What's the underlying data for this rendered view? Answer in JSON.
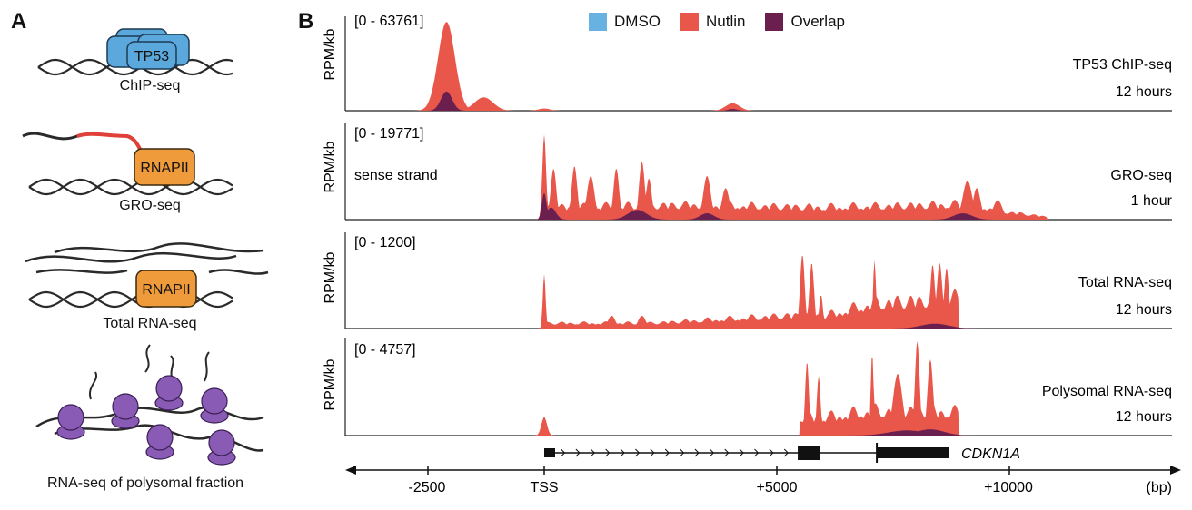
{
  "panel_a": {
    "label": "A",
    "chip_protein": "TP53",
    "chip_caption": "ChIP-seq",
    "gro_protein": "RNAPII",
    "gro_caption": "GRO-seq",
    "total_protein": "RNAPII",
    "total_caption": "Total RNA-seq",
    "poly_caption": "RNA-seq of polysomal fraction",
    "colors": {
      "tp53": "#5ba8dc",
      "rnapii": "#ef9a3b",
      "ribosome": "#8a5bb5",
      "dna": "#2a2a2a",
      "nascent": "#e0403a"
    }
  },
  "panel_b": {
    "label": "B",
    "legend": [
      {
        "name": "DMSO",
        "color": "#67b2e0"
      },
      {
        "name": "Nutlin",
        "color": "#e8574a"
      },
      {
        "name": "Overlap",
        "color": "#6b1f4f"
      }
    ],
    "gene": "CDKN1A",
    "x_ticks": [
      "-2500",
      "TSS",
      "+5000",
      "+10000"
    ],
    "x_unit": "(bp)",
    "tracks": [
      {
        "range": "[0 - 63761]",
        "name": "TP53 ChIP-seq",
        "time": "12 hours",
        "note": "",
        "ylabel": "RPM/kb"
      },
      {
        "range": "[0 - 19771]",
        "name": "GRO-seq",
        "time": "1 hour",
        "note": "sense strand",
        "ylabel": "RPM/kb"
      },
      {
        "range": "[0 - 1200]",
        "name": "Total RNA-seq",
        "time": "12 hours",
        "note": "",
        "ylabel": "RPM/kb"
      },
      {
        "range": "[0 - 4757]",
        "name": "Polysomal RNA-seq",
        "time": "12 hours",
        "note": "",
        "ylabel": "RPM/kb"
      }
    ]
  },
  "chart_data": {
    "type": "area",
    "x_unit": "bp",
    "x_ticks": [
      -2500,
      0,
      5000,
      10000
    ],
    "series_colors": {
      "DMSO": "#67b2e0",
      "Nutlin": "#e8574a",
      "Overlap": "#6b1f4f"
    },
    "tracks": [
      {
        "name": "TP53 ChIP-seq",
        "ymax": 63761,
        "nutlin_peaks": [
          [
            -2100,
            60000,
            180
          ],
          [
            -1300,
            9000,
            200
          ],
          [
            4050,
            5000,
            150
          ],
          [
            0,
            1500,
            120
          ]
        ],
        "overlap_peaks": [
          [
            -2100,
            13000,
            120
          ],
          [
            4050,
            1200,
            100
          ]
        ]
      },
      {
        "name": "GRO-seq",
        "ymax": 19771,
        "nutlin_peaks": [
          [
            0,
            17500,
            40
          ],
          [
            200,
            10500,
            60
          ],
          [
            650,
            11000,
            60
          ],
          [
            1000,
            9000,
            80
          ],
          [
            1550,
            10500,
            60
          ],
          [
            2100,
            12000,
            60
          ],
          [
            2250,
            8500,
            60
          ],
          [
            3500,
            9000,
            80
          ],
          [
            3900,
            6500,
            80
          ],
          [
            9100,
            8000,
            100
          ],
          [
            9300,
            6500,
            80
          ],
          [
            9750,
            4000,
            100
          ]
        ],
        "nutlin_background": [
          [
            0,
            3300
          ],
          [
            3000,
            4000
          ],
          [
            6000,
            3400
          ],
          [
            9200,
            4200
          ],
          [
            10000,
            2000
          ],
          [
            10800,
            800
          ]
        ],
        "overlap_peaks": [
          [
            0,
            5500,
            50
          ],
          [
            150,
            2500,
            100
          ],
          [
            2000,
            2000,
            200
          ],
          [
            3500,
            1300,
            150
          ],
          [
            9000,
            1300,
            200
          ]
        ]
      },
      {
        "name": "Total RNA-seq",
        "ymax": 1200,
        "nutlin_peaks": [
          [
            0,
            680,
            30
          ],
          [
            1450,
            160,
            80
          ],
          [
            2100,
            160,
            80
          ],
          [
            5550,
            920,
            50
          ],
          [
            5750,
            820,
            50
          ],
          [
            5950,
            420,
            40
          ],
          [
            7100,
            860,
            30
          ],
          [
            8350,
            800,
            50
          ],
          [
            8500,
            820,
            60
          ],
          [
            8650,
            760,
            50
          ]
        ],
        "nutlin_background": [
          [
            0,
            90
          ],
          [
            2300,
            90
          ],
          [
            5400,
            220
          ],
          [
            6100,
            220
          ],
          [
            7100,
            420
          ],
          [
            8900,
            500
          ]
        ],
        "overlap_peaks": [
          [
            8400,
            60,
            300
          ]
        ]
      },
      {
        "name": "Polysomal RNA-seq",
        "ymax": 4757,
        "nutlin_peaks": [
          [
            0,
            900,
            60
          ],
          [
            5650,
            3600,
            40
          ],
          [
            5900,
            2900,
            40
          ],
          [
            7050,
            4000,
            30
          ],
          [
            8020,
            4600,
            50
          ],
          [
            8300,
            3700,
            60
          ],
          [
            7600,
            3000,
            100
          ]
        ],
        "nutlin_background": [
          [
            5500,
            1200
          ],
          [
            6100,
            1200
          ],
          [
            7100,
            1600
          ],
          [
            8900,
            1500
          ]
        ],
        "overlap_peaks": [
          [
            7800,
            250,
            400
          ],
          [
            8300,
            300,
            300
          ]
        ]
      }
    ]
  }
}
